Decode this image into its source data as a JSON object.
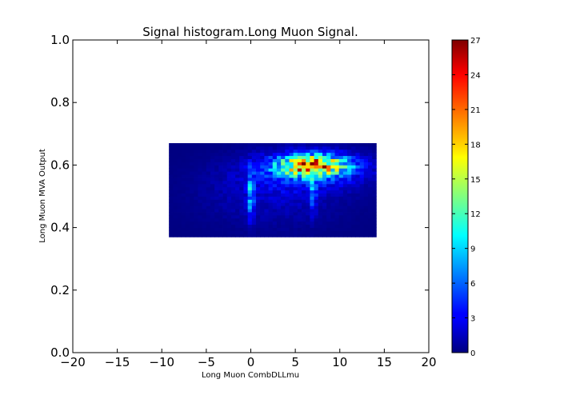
{
  "chart_data": {
    "type": "heatmap",
    "title": "Signal histogram.Long Muon Signal.",
    "xlabel": "Long Muon CombDLLmu",
    "ylabel": "Long Muon MVA Output",
    "xlim": [
      -20,
      20
    ],
    "ylim": [
      0.0,
      1.0
    ],
    "xticks": [
      "−20",
      "−15",
      "−10",
      "−5",
      "0",
      "5",
      "10",
      "15",
      "20"
    ],
    "xtick_values": [
      -20,
      -15,
      -10,
      -5,
      0,
      5,
      10,
      15,
      20
    ],
    "yticks": [
      "0.0",
      "0.2",
      "0.4",
      "0.6",
      "0.8",
      "1.0"
    ],
    "ytick_values": [
      0.0,
      0.2,
      0.4,
      0.6,
      0.8,
      1.0
    ],
    "grid": false,
    "colormap": "jet",
    "colorbar": {
      "min": 0,
      "max": 27,
      "ticks": [
        "0",
        "3",
        "6",
        "9",
        "12",
        "15",
        "18",
        "21",
        "24",
        "27"
      ],
      "tick_values": [
        0,
        3,
        6,
        9,
        12,
        15,
        18,
        21,
        24,
        27
      ]
    },
    "histogram": {
      "x_range": [
        -9.2,
        14.1
      ],
      "y_range": [
        0.37,
        0.67
      ],
      "nbins_x": 50,
      "nbins_y": 30,
      "max_count": 27,
      "density_components": [
        {
          "cx": 7.0,
          "cy": 0.6,
          "sx": 2.6,
          "sy": 0.022,
          "amp": 18
        },
        {
          "cx": 6.5,
          "cy": 0.585,
          "sx": 4.5,
          "sy": 0.04,
          "amp": 5
        },
        {
          "cx": 2.5,
          "cy": 0.51,
          "sx": 5.5,
          "sy": 0.07,
          "amp": 1.8
        },
        {
          "cx": 0.0,
          "cy": 0.5,
          "sx": 0.25,
          "sy": 0.05,
          "amp": 7
        },
        {
          "cx": 7.0,
          "cy": 0.52,
          "sx": 0.25,
          "sy": 0.05,
          "amp": 5
        }
      ]
    }
  }
}
